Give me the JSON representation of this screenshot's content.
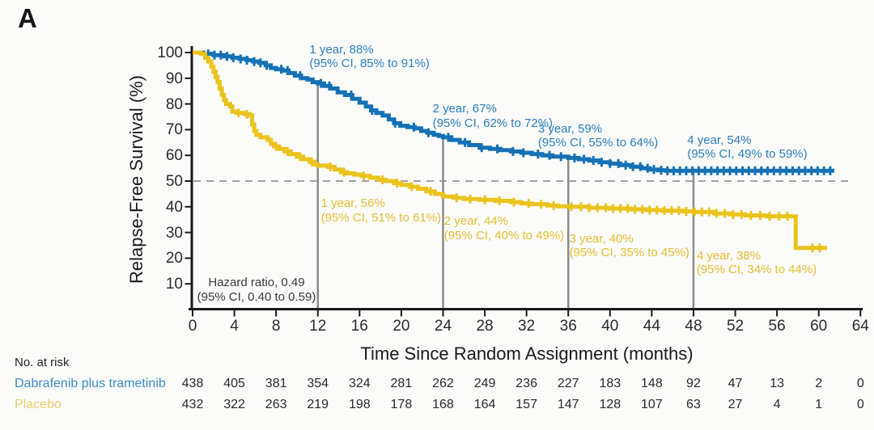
{
  "panel_label": "A",
  "colors": {
    "background": "#FBFBF9",
    "axis": "#1a1a1a",
    "text": "#2b2b2b",
    "treatment": "#1571B5",
    "placebo": "#EAC31C",
    "annotation_treatment": "#2B7EC1",
    "annotation_placebo": "#E3BE33",
    "treatment_label": "#3E8CC7",
    "placebo_label": "#E7CD6B",
    "reference_dash": "#A3A3A3",
    "marker_line": "#8B8B8B",
    "hazard_text": "#3A3A3A"
  },
  "chart_data": {
    "type": "line",
    "subtype": "kaplan-meier-step",
    "title": "",
    "xlabel": "Time Since Random Assignment (months)",
    "ylabel": "Relapse-Free Survival (%)",
    "xlim": [
      0,
      64
    ],
    "ylim": [
      0,
      100
    ],
    "x_ticks": [
      0,
      4,
      8,
      12,
      16,
      20,
      24,
      28,
      32,
      36,
      40,
      44,
      48,
      52,
      56,
      60,
      64
    ],
    "y_ticks": [
      100,
      90,
      80,
      70,
      60,
      50,
      40,
      30,
      20,
      10
    ],
    "grid": false,
    "reference_line_y": 50,
    "vertical_marker_months": [
      12,
      24,
      36,
      48
    ],
    "hazard_ratio": {
      "line1": "Hazard ratio, 0.49",
      "line2": "(95% CI, 0.40 to 0.59)"
    },
    "series": [
      {
        "name": "Dabrafenib plus trametinib",
        "color_key": "treatment",
        "annotation_color_key": "annotation_treatment",
        "milestones": [
          {
            "year": 1,
            "value_pct": 88,
            "ci": [
              85,
              91
            ]
          },
          {
            "year": 2,
            "value_pct": 67,
            "ci": [
              62,
              72
            ]
          },
          {
            "year": 3,
            "value_pct": 59,
            "ci": [
              55,
              64
            ]
          },
          {
            "year": 4,
            "value_pct": 54,
            "ci": [
              49,
              59
            ]
          }
        ],
        "annotations": [
          {
            "t": 11.2,
            "p": 103.8,
            "line1": "1 year, 88%",
            "line2": "(95% CI, 85% to 91%)"
          },
          {
            "t": 23.0,
            "p": 80.8,
            "line1": "2 year, 67%",
            "line2": "(95% CI, 62% to 72%)"
          },
          {
            "t": 33.1,
            "p": 73.0,
            "line1": "3 year, 59%",
            "line2": "(95% CI, 55% to 64%)"
          },
          {
            "t": 47.4,
            "p": 68.6,
            "line1": "4 year, 54%",
            "line2": "(95% CI, 49% to 59%)"
          }
        ],
        "steps": [
          [
            0,
            100
          ],
          [
            1,
            99.5
          ],
          [
            2,
            99
          ],
          [
            3,
            98.5
          ],
          [
            3.8,
            98
          ],
          [
            4.5,
            97.5
          ],
          [
            5.2,
            97
          ],
          [
            5.8,
            96.5
          ],
          [
            6.4,
            96
          ],
          [
            7,
            95
          ],
          [
            7.5,
            94
          ],
          [
            8,
            93.5
          ],
          [
            8.6,
            93
          ],
          [
            9.2,
            92
          ],
          [
            9.8,
            91
          ],
          [
            10.4,
            90
          ],
          [
            11,
            89.5
          ],
          [
            11.5,
            88.5
          ],
          [
            12,
            88
          ],
          [
            12.6,
            87
          ],
          [
            13.2,
            86
          ],
          [
            13.9,
            84.5
          ],
          [
            14.6,
            83.5
          ],
          [
            15.3,
            82
          ],
          [
            16,
            80.5
          ],
          [
            16.6,
            79
          ],
          [
            17.1,
            77.5
          ],
          [
            17.6,
            76.5
          ],
          [
            18.2,
            75.5
          ],
          [
            18.8,
            74
          ],
          [
            19.3,
            72.5
          ],
          [
            19.9,
            71.5
          ],
          [
            20.6,
            71
          ],
          [
            21.3,
            70.5
          ],
          [
            21.9,
            69.5
          ],
          [
            22.5,
            68.8
          ],
          [
            23.1,
            68
          ],
          [
            23.6,
            67.5
          ],
          [
            24,
            67
          ],
          [
            24.8,
            66
          ],
          [
            25.6,
            65
          ],
          [
            26.5,
            64
          ],
          [
            27.5,
            63
          ],
          [
            28.5,
            62.5
          ],
          [
            29.5,
            62
          ],
          [
            30.5,
            61.5
          ],
          [
            31.5,
            61
          ],
          [
            32.5,
            60.5
          ],
          [
            33.5,
            60
          ],
          [
            34.5,
            59.5
          ],
          [
            36,
            59
          ],
          [
            37,
            58.5
          ],
          [
            38,
            58
          ],
          [
            39,
            57.3
          ],
          [
            40,
            56.8
          ],
          [
            41,
            56.2
          ],
          [
            42,
            55.6
          ],
          [
            43,
            55
          ],
          [
            43.8,
            54.5
          ],
          [
            44.6,
            54.2
          ],
          [
            45.4,
            54
          ],
          [
            61.5,
            54
          ]
        ],
        "censor_times": [
          1.5,
          2.1,
          2.7,
          3.3,
          3.9,
          4.6,
          5.2,
          5.9,
          6.5,
          7.1,
          8.5,
          9.1,
          10.3,
          12.3,
          13.1,
          15.2,
          17.2,
          19.4,
          21.2,
          22.6,
          24.5,
          26.1,
          27.7,
          29.2,
          30.7,
          31.7,
          33.1,
          34.2,
          35.3,
          36.6,
          37.5,
          38.4,
          39.2,
          40,
          40.8,
          41.5,
          42.2,
          42.9,
          43.6,
          44.2,
          44.9,
          45.5,
          46.1,
          46.7,
          47.3,
          47.9,
          48.5,
          49.1,
          49.7,
          50.3,
          50.9,
          51.5,
          52.1,
          52.7,
          53.3,
          53.9,
          54.5,
          55.1,
          55.7,
          56.3,
          56.9,
          57.5,
          58.1,
          58.7,
          59.3,
          59.9,
          60.5,
          61.1
        ]
      },
      {
        "name": "Placebo",
        "color_key": "placebo",
        "annotation_color_key": "annotation_placebo",
        "milestones": [
          {
            "year": 1,
            "value_pct": 56,
            "ci": [
              51,
              61
            ]
          },
          {
            "year": 2,
            "value_pct": 44,
            "ci": [
              40,
              49
            ]
          },
          {
            "year": 3,
            "value_pct": 40,
            "ci": [
              35,
              45
            ]
          },
          {
            "year": 4,
            "value_pct": 38,
            "ci": [
              34,
              44
            ]
          }
        ],
        "annotations": [
          {
            "t": 12.3,
            "p": 44.0,
            "line1": "1 year, 56%",
            "line2": "(95% CI, 51% to 61%)"
          },
          {
            "t": 24.1,
            "p": 37.1,
            "line1": "2 year, 44%",
            "line2": "(95% CI, 40% to 49%)"
          },
          {
            "t": 36.1,
            "p": 30.2,
            "line1": "3 year, 40%",
            "line2": "(95% CI, 35% to 45%)"
          },
          {
            "t": 48.3,
            "p": 23.6,
            "line1": "4 year, 38%",
            "line2": "(95% CI, 34% to 44%)"
          }
        ],
        "steps": [
          [
            0,
            100
          ],
          [
            0.8,
            99.5
          ],
          [
            1.2,
            98
          ],
          [
            1.5,
            96.5
          ],
          [
            1.8,
            94.5
          ],
          [
            2,
            92.5
          ],
          [
            2.2,
            90.5
          ],
          [
            2.4,
            88.5
          ],
          [
            2.6,
            86
          ],
          [
            2.8,
            83.5
          ],
          [
            3,
            81.5
          ],
          [
            3.2,
            80
          ],
          [
            3.6,
            79
          ],
          [
            3.8,
            77
          ],
          [
            4.2,
            76.5
          ],
          [
            5,
            76
          ],
          [
            5.5,
            75.5
          ],
          [
            5.7,
            72
          ],
          [
            5.9,
            69.5
          ],
          [
            6.1,
            68
          ],
          [
            6.5,
            67
          ],
          [
            7.2,
            66
          ],
          [
            7.5,
            64.5
          ],
          [
            7.8,
            63.5
          ],
          [
            8.3,
            62.5
          ],
          [
            8.8,
            61.5
          ],
          [
            9.4,
            60.5
          ],
          [
            10,
            59.5
          ],
          [
            10.6,
            58.5
          ],
          [
            11.2,
            57.5
          ],
          [
            11.7,
            56.5
          ],
          [
            12,
            56
          ],
          [
            13,
            55.5
          ],
          [
            13.6,
            54.5
          ],
          [
            14.2,
            53.5
          ],
          [
            14.8,
            53
          ],
          [
            15.5,
            52.5
          ],
          [
            16.2,
            52
          ],
          [
            17,
            51.3
          ],
          [
            17.8,
            50.5
          ],
          [
            18.5,
            50
          ],
          [
            19.3,
            49.2
          ],
          [
            20,
            48.5
          ],
          [
            20.8,
            47.8
          ],
          [
            21.6,
            47
          ],
          [
            22.4,
            46
          ],
          [
            23.2,
            45
          ],
          [
            24,
            44
          ],
          [
            25,
            43.5
          ],
          [
            26,
            43
          ],
          [
            27.5,
            42.7
          ],
          [
            29,
            42.3
          ],
          [
            30.5,
            41.8
          ],
          [
            31.5,
            41.3
          ],
          [
            32.5,
            41
          ],
          [
            34,
            40.5
          ],
          [
            35,
            40.2
          ],
          [
            36,
            40
          ],
          [
            38,
            39.6
          ],
          [
            40,
            39.3
          ],
          [
            42,
            39
          ],
          [
            43.5,
            38.7
          ],
          [
            45,
            38.5
          ],
          [
            47,
            38.2
          ],
          [
            48,
            38
          ],
          [
            50,
            37.4
          ],
          [
            51.5,
            37
          ],
          [
            53,
            36.6
          ],
          [
            55,
            36.3
          ],
          [
            57.8,
            24
          ],
          [
            60.8,
            24
          ]
        ],
        "censor_times": [
          4.4,
          5.2,
          8,
          9.1,
          10.3,
          11.4,
          13.2,
          14.5,
          16.4,
          18.2,
          19.6,
          21,
          22.8,
          25.3,
          26.6,
          28,
          29.4,
          30.8,
          32.2,
          33.4,
          34.6,
          36.3,
          37.2,
          38,
          38.8,
          39.6,
          40.3,
          41,
          41.7,
          42.4,
          43.1,
          43.8,
          44.5,
          45.2,
          45.9,
          46.6,
          47.3,
          48.1,
          48.8,
          49.5,
          50.2,
          51,
          51.8,
          52.6,
          53.5,
          54.4,
          55.3,
          56.2,
          57,
          59.4,
          60.1
        ]
      }
    ]
  },
  "risk_table": {
    "header": "No. at risk",
    "rows": [
      {
        "label": "Dabrafenib plus trametinib",
        "color_key": "treatment_label",
        "counts": [
          438,
          405,
          381,
          354,
          324,
          281,
          262,
          249,
          236,
          227,
          183,
          148,
          92,
          47,
          13,
          2,
          0
        ]
      },
      {
        "label": "Placebo",
        "color_key": "placebo_label",
        "counts": [
          432,
          322,
          263,
          219,
          198,
          178,
          168,
          164,
          157,
          147,
          128,
          107,
          63,
          27,
          4,
          1,
          0
        ]
      }
    ]
  }
}
